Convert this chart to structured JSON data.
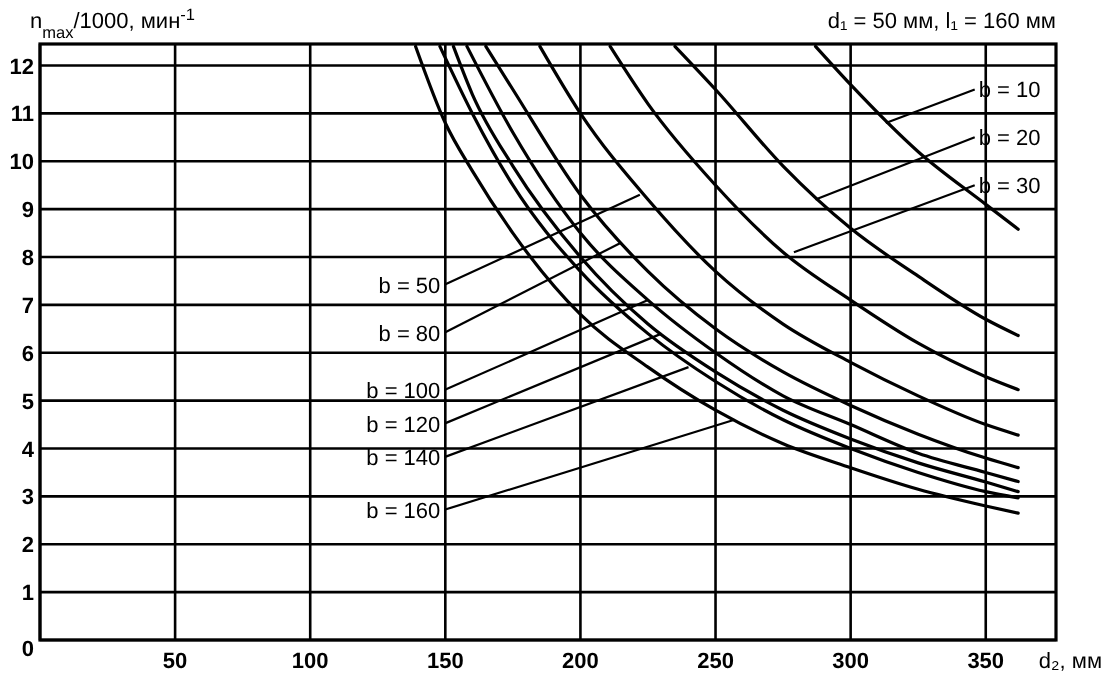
{
  "chart_data": {
    "type": "line",
    "title": "d₁ = 50 мм, l₁ = 160 мм",
    "xlabel": "d₂, мм",
    "ylabel": "n$_{max}$/1000, мин$^{-1}$",
    "xlim": [
      0,
      376
    ],
    "ylim": [
      0,
      12.45
    ],
    "xticks": [
      {
        "value": 0,
        "label": null
      },
      50,
      100,
      150,
      200,
      250,
      300,
      350
    ],
    "yticks": [
      0,
      1,
      2,
      3,
      4,
      5,
      6,
      7,
      8,
      9,
      10,
      11,
      12
    ],
    "grid": true,
    "marker": "none",
    "line_style": "solid",
    "series": [
      {
        "color": "#000000",
        "x": [
          287,
          300,
          325,
          350,
          362
        ],
        "values": [
          12.4,
          11.6,
          10.2,
          9.1,
          8.58
        ]
      },
      {
        "color": "#000000",
        "x": [
          235,
          250,
          275,
          300,
          325,
          350,
          362
        ],
        "values": [
          12.4,
          11.5,
          9.9,
          8.6,
          7.6,
          6.7,
          6.36
        ]
      },
      {
        "color": "#000000",
        "x": [
          211,
          225,
          250,
          275,
          300,
          325,
          350,
          362
        ],
        "values": [
          12.4,
          11.2,
          9.5,
          8.1,
          7.1,
          6.2,
          5.5,
          5.23
        ]
      },
      {
        "color": "#000000",
        "x": [
          185,
          200,
          225,
          250,
          275,
          300,
          325,
          350,
          362
        ],
        "values": [
          12.4,
          11.0,
          9.2,
          7.7,
          6.6,
          5.8,
          5.1,
          4.5,
          4.28
        ]
      },
      {
        "color": "#000000",
        "x": [
          165,
          175,
          200,
          225,
          250,
          275,
          300,
          325,
          350,
          362
        ],
        "values": [
          12.4,
          11.5,
          9.3,
          7.7,
          6.5,
          5.6,
          4.9,
          4.3,
          3.8,
          3.6
        ]
      },
      {
        "color": "#000000",
        "x": [
          158,
          175,
          200,
          225,
          250,
          275,
          300,
          325,
          350,
          362
        ],
        "values": [
          12.4,
          10.6,
          8.5,
          7.1,
          6.0,
          5.1,
          4.5,
          3.9,
          3.5,
          3.31
        ]
      },
      {
        "color": "#000000",
        "x": [
          153,
          160,
          175,
          200,
          225,
          250,
          275,
          300,
          325,
          350,
          362
        ],
        "values": [
          12.4,
          11.4,
          9.9,
          8.0,
          6.6,
          5.6,
          4.8,
          4.2,
          3.7,
          3.3,
          3.1
        ]
      },
      {
        "color": "#000000",
        "x": [
          148,
          160,
          175,
          200,
          225,
          250,
          275,
          300,
          325,
          350,
          362
        ],
        "values": [
          12.4,
          11.0,
          9.5,
          7.7,
          6.4,
          5.4,
          4.6,
          4.0,
          3.5,
          3.1,
          2.97
        ]
      },
      {
        "color": "#000000",
        "x": [
          139,
          150,
          160,
          175,
          200,
          225,
          250,
          275,
          300,
          325,
          350,
          362
        ],
        "values": [
          12.4,
          10.8,
          9.8,
          8.5,
          6.8,
          5.7,
          4.8,
          4.1,
          3.6,
          3.15,
          2.8,
          2.65
        ]
      }
    ],
    "annotations": [
      {
        "text": "b = 10",
        "x": 313,
        "y": 10.8
      },
      {
        "text": "b = 20",
        "x": 287,
        "y": 9.2
      },
      {
        "text": "b = 30",
        "x": 279,
        "y": 8.1
      },
      {
        "text": "b = 50",
        "x": 222,
        "y": 9.3
      },
      {
        "text": "b = 80",
        "x": 215,
        "y": 8.3
      },
      {
        "text": "b = 100",
        "x": 225,
        "y": 7.1
      },
      {
        "text": "b = 120",
        "x": 230,
        "y": 6.4
      },
      {
        "text": "b = 140",
        "x": 240,
        "y": 5.7
      },
      {
        "text": "b = 160",
        "x": 257,
        "y": 4.6
      }
    ]
  }
}
